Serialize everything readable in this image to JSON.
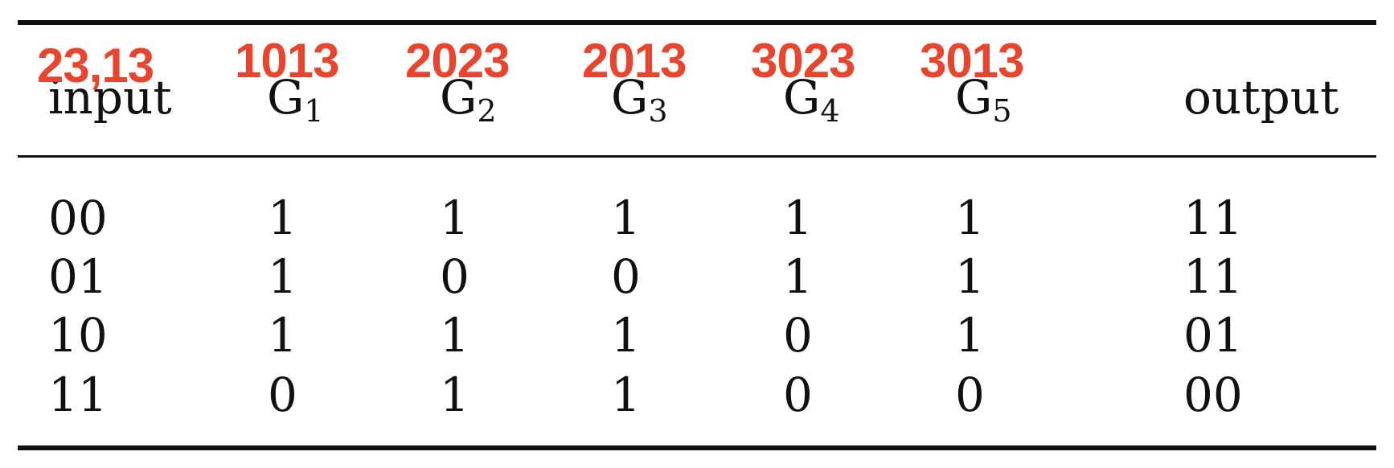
{
  "table": {
    "headers": [
      {
        "text": "input",
        "sub": ""
      },
      {
        "text": "G",
        "sub": "1"
      },
      {
        "text": "G",
        "sub": "2"
      },
      {
        "text": "G",
        "sub": "3"
      },
      {
        "text": "G",
        "sub": "4"
      },
      {
        "text": "G",
        "sub": "5"
      },
      {
        "text": "output",
        "sub": ""
      }
    ],
    "rows": [
      [
        "00",
        "1",
        "1",
        "1",
        "1",
        "1",
        "11"
      ],
      [
        "01",
        "1",
        "0",
        "0",
        "1",
        "1",
        "11"
      ],
      [
        "10",
        "1",
        "1",
        "1",
        "0",
        "1",
        "01"
      ],
      [
        "11",
        "0",
        "1",
        "1",
        "0",
        "0",
        "00"
      ]
    ]
  },
  "overlay_labels": [
    "23,13",
    "1013",
    "2023",
    "2013",
    "3023",
    "3013"
  ]
}
